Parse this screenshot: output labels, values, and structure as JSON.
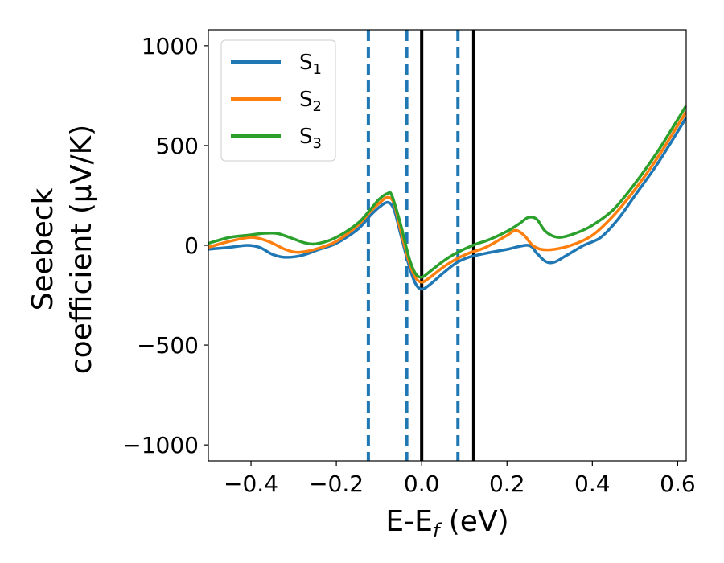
{
  "chart_data": {
    "type": "line",
    "xlabel": "E-E",
    "xlabel_sub": "f",
    "xlabel_unit": " (eV)",
    "ylabel_line1": "Seebeck",
    "ylabel_line2": "coefficient  (μV/K)",
    "xlim": [
      -0.5,
      0.62
    ],
    "ylim": [
      -1080,
      1080
    ],
    "xticks": [
      -0.4,
      -0.2,
      0.0,
      0.2,
      0.4,
      0.6
    ],
    "xtick_labels": [
      "−0.4",
      "−0.2",
      "0.0",
      "0.2",
      "0.4",
      "0.6"
    ],
    "yticks": [
      -1000,
      -500,
      0,
      500,
      1000
    ],
    "ytick_labels": [
      "−1000",
      "−500",
      "0",
      "500",
      "1000"
    ],
    "grid": false,
    "legend_position": "top-left",
    "series": [
      {
        "name": "S",
        "sub": "1",
        "color": "#1f77b4",
        "points": [
          [
            -0.5,
            -20
          ],
          [
            -0.45,
            -10
          ],
          [
            -0.41,
            0
          ],
          [
            -0.38,
            -10
          ],
          [
            -0.35,
            -45
          ],
          [
            -0.32,
            -60
          ],
          [
            -0.28,
            -50
          ],
          [
            -0.24,
            -20
          ],
          [
            -0.2,
            10
          ],
          [
            -0.15,
            80
          ],
          [
            -0.12,
            150
          ],
          [
            -0.1,
            190
          ],
          [
            -0.08,
            215
          ],
          [
            -0.065,
            180
          ],
          [
            -0.05,
            60
          ],
          [
            -0.03,
            -100
          ],
          [
            -0.015,
            -190
          ],
          [
            0.0,
            -220
          ],
          [
            0.02,
            -195
          ],
          [
            0.05,
            -140
          ],
          [
            0.08,
            -90
          ],
          [
            0.11,
            -60
          ],
          [
            0.15,
            -40
          ],
          [
            0.2,
            -20
          ],
          [
            0.25,
            0
          ],
          [
            0.27,
            -40
          ],
          [
            0.29,
            -80
          ],
          [
            0.31,
            -85
          ],
          [
            0.34,
            -50
          ],
          [
            0.38,
            0
          ],
          [
            0.42,
            40
          ],
          [
            0.46,
            130
          ],
          [
            0.5,
            250
          ],
          [
            0.55,
            400
          ],
          [
            0.6,
            570
          ],
          [
            0.62,
            640
          ]
        ]
      },
      {
        "name": "S",
        "sub": "2",
        "color": "#ff7f0e",
        "points": [
          [
            -0.5,
            -10
          ],
          [
            -0.45,
            20
          ],
          [
            -0.4,
            40
          ],
          [
            -0.36,
            20
          ],
          [
            -0.32,
            -20
          ],
          [
            -0.29,
            -35
          ],
          [
            -0.25,
            -20
          ],
          [
            -0.2,
            20
          ],
          [
            -0.15,
            100
          ],
          [
            -0.12,
            170
          ],
          [
            -0.1,
            210
          ],
          [
            -0.08,
            240
          ],
          [
            -0.065,
            210
          ],
          [
            -0.05,
            80
          ],
          [
            -0.03,
            -80
          ],
          [
            -0.015,
            -160
          ],
          [
            0.0,
            -185
          ],
          [
            0.02,
            -160
          ],
          [
            0.05,
            -110
          ],
          [
            0.08,
            -70
          ],
          [
            0.11,
            -40
          ],
          [
            0.15,
            -10
          ],
          [
            0.2,
            50
          ],
          [
            0.22,
            75
          ],
          [
            0.24,
            50
          ],
          [
            0.26,
            0
          ],
          [
            0.28,
            -20
          ],
          [
            0.31,
            -20
          ],
          [
            0.35,
            0
          ],
          [
            0.4,
            50
          ],
          [
            0.45,
            150
          ],
          [
            0.5,
            280
          ],
          [
            0.55,
            430
          ],
          [
            0.6,
            600
          ],
          [
            0.62,
            670
          ]
        ]
      },
      {
        "name": "S",
        "sub": "3",
        "color": "#2ca02c",
        "points": [
          [
            -0.5,
            10
          ],
          [
            -0.45,
            40
          ],
          [
            -0.41,
            50
          ],
          [
            -0.37,
            60
          ],
          [
            -0.34,
            60
          ],
          [
            -0.31,
            40
          ],
          [
            -0.27,
            10
          ],
          [
            -0.24,
            10
          ],
          [
            -0.2,
            40
          ],
          [
            -0.15,
            110
          ],
          [
            -0.12,
            180
          ],
          [
            -0.1,
            230
          ],
          [
            -0.08,
            260
          ],
          [
            -0.07,
            250
          ],
          [
            -0.05,
            110
          ],
          [
            -0.03,
            -60
          ],
          [
            -0.015,
            -140
          ],
          [
            0.0,
            -160
          ],
          [
            0.02,
            -130
          ],
          [
            0.05,
            -80
          ],
          [
            0.08,
            -40
          ],
          [
            0.12,
            0
          ],
          [
            0.16,
            30
          ],
          [
            0.2,
            70
          ],
          [
            0.23,
            110
          ],
          [
            0.25,
            140
          ],
          [
            0.27,
            130
          ],
          [
            0.29,
            70
          ],
          [
            0.32,
            40
          ],
          [
            0.36,
            60
          ],
          [
            0.4,
            100
          ],
          [
            0.45,
            180
          ],
          [
            0.5,
            310
          ],
          [
            0.55,
            460
          ],
          [
            0.6,
            630
          ],
          [
            0.62,
            700
          ]
        ]
      }
    ],
    "vlines_dashed": {
      "x": [
        -0.125,
        -0.035,
        0.085
      ],
      "color": "#1f77b4"
    },
    "vlines_solid": {
      "x": [
        0.0,
        0.122
      ],
      "color": "#000000"
    }
  }
}
